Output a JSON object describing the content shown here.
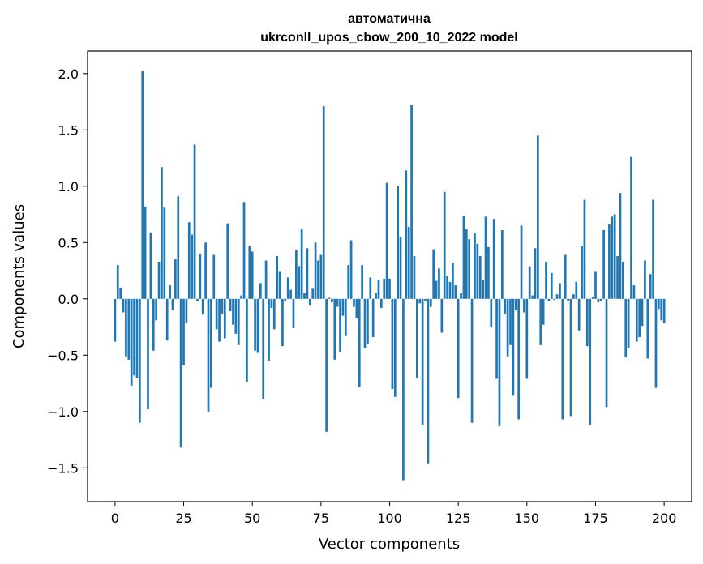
{
  "chart_data": {
    "type": "bar",
    "title": "автоматична",
    "subtitle": "ukrconll_upos_cbow_200_10_2022 model",
    "xlabel": "Vector components",
    "ylabel": "Components values",
    "xlim": [
      -10,
      210
    ],
    "ylim": [
      -1.8,
      2.2
    ],
    "xticks": [
      0,
      25,
      50,
      75,
      100,
      125,
      150,
      175,
      200
    ],
    "xtick_labels": [
      "0",
      "25",
      "50",
      "75",
      "100",
      "125",
      "150",
      "175",
      "200"
    ],
    "yticks": [
      -1.5,
      -1.0,
      -0.5,
      0.0,
      0.5,
      1.0,
      1.5,
      2.0
    ],
    "ytick_labels": [
      "−1.5",
      "−1.0",
      "−0.5",
      "0.0",
      "0.5",
      "1.0",
      "1.5",
      "2.0"
    ],
    "bar_color": "#1f77b4",
    "grid": false,
    "values": [
      -0.38,
      0.3,
      0.1,
      -0.12,
      -0.51,
      -0.54,
      -0.77,
      -0.68,
      -0.7,
      -1.1,
      2.02,
      0.82,
      -0.98,
      0.59,
      -0.46,
      -0.19,
      0.33,
      1.17,
      0.81,
      -0.37,
      0.12,
      -0.1,
      0.35,
      0.91,
      -1.32,
      -0.59,
      -0.21,
      0.68,
      0.57,
      1.37,
      -0.02,
      0.4,
      -0.14,
      0.5,
      -1.0,
      -0.79,
      0.39,
      -0.27,
      -0.38,
      -0.13,
      -0.35,
      0.67,
      -0.11,
      -0.23,
      -0.31,
      -0.41,
      0.03,
      0.86,
      -0.74,
      0.47,
      0.42,
      -0.46,
      -0.48,
      0.14,
      -0.89,
      0.34,
      -0.55,
      -0.08,
      -0.27,
      0.38,
      0.24,
      -0.42,
      -0.02,
      0.19,
      0.08,
      -0.26,
      0.43,
      0.29,
      0.62,
      0.05,
      0.45,
      -0.06,
      0.09,
      0.5,
      0.34,
      0.39,
      1.71,
      -1.18,
      0.01,
      -0.03,
      -0.54,
      -0.07,
      -0.47,
      -0.15,
      -0.33,
      0.3,
      0.52,
      -0.07,
      -0.17,
      -0.78,
      0.3,
      -0.44,
      -0.4,
      0.19,
      -0.34,
      0.05,
      0.17,
      -0.08,
      0.18,
      1.03,
      0.18,
      -0.8,
      -0.87,
      1.0,
      0.55,
      -1.61,
      1.14,
      0.64,
      1.72,
      0.38,
      -0.7,
      -0.04,
      -1.12,
      -0.02,
      -1.46,
      -0.07,
      0.44,
      0.16,
      0.27,
      -0.3,
      0.95,
      0.2,
      0.15,
      0.32,
      0.12,
      -0.88,
      0.05,
      0.74,
      0.62,
      0.53,
      -1.1,
      0.58,
      0.49,
      0.38,
      0.17,
      0.73,
      0.46,
      -0.25,
      0.71,
      -0.71,
      -1.13,
      0.61,
      -0.13,
      -0.51,
      -0.41,
      -0.86,
      -0.1,
      -1.07,
      0.65,
      -0.12,
      -0.71,
      0.29,
      0.03,
      0.45,
      1.45,
      -0.41,
      -0.23,
      0.33,
      -0.02,
      0.23,
      -0.01,
      0.04,
      0.14,
      -1.07,
      0.39,
      -0.02,
      -1.04,
      0.04,
      0.15,
      -0.28,
      0.47,
      0.88,
      -0.42,
      -1.12,
      0.02,
      0.24,
      -0.03,
      -0.02,
      0.61,
      -0.96,
      0.66,
      0.73,
      0.75,
      0.38,
      0.94,
      0.33,
      -0.52,
      -0.44,
      1.26,
      0.12,
      -0.38,
      -0.34,
      -0.24,
      0.34,
      -0.53,
      0.22,
      0.88,
      -0.79,
      -0.09,
      -0.19,
      -0.21
    ]
  }
}
